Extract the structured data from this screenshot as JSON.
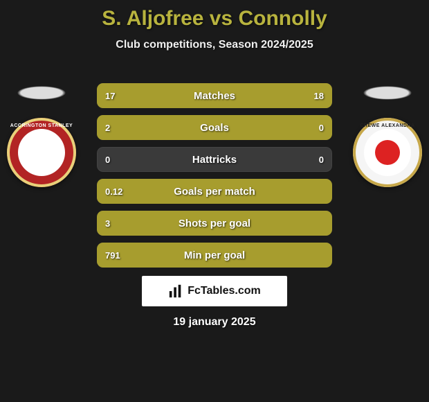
{
  "title_color": "#b8b33e",
  "background_color": "#1a1a1a",
  "header": {
    "title": "S. Aljofree vs Connolly",
    "subtitle": "Club competitions, Season 2024/2025"
  },
  "players": {
    "left": {
      "crest_bg": "#b22424",
      "crest_border": "#e8d07a",
      "crest_text": "ACCRINGTON STANLEY"
    },
    "right": {
      "crest_bg": "#f5f5f5",
      "crest_border": "#c7a84a",
      "crest_text": "CREWE ALEXANDRA"
    }
  },
  "colors": {
    "left_bar": "#a79d2e",
    "right_bar": "#a79d2e",
    "empty_bar": "#3a3a3a",
    "track_border": "#2b2b2b"
  },
  "stats": [
    {
      "label": "Matches",
      "left_val": "17",
      "right_val": "18",
      "left_pct": 49,
      "right_pct": 51
    },
    {
      "label": "Goals",
      "left_val": "2",
      "right_val": "0",
      "left_pct": 100,
      "right_pct": 0
    },
    {
      "label": "Hattricks",
      "left_val": "0",
      "right_val": "0",
      "left_pct": 0,
      "right_pct": 0
    },
    {
      "label": "Goals per match",
      "left_val": "0.12",
      "right_val": "",
      "left_pct": 100,
      "right_pct": 0
    },
    {
      "label": "Shots per goal",
      "left_val": "3",
      "right_val": "",
      "left_pct": 100,
      "right_pct": 0
    },
    {
      "label": "Min per goal",
      "left_val": "791",
      "right_val": "",
      "left_pct": 100,
      "right_pct": 0
    }
  ],
  "brand": "FcTables.com",
  "date": "19 january 2025"
}
